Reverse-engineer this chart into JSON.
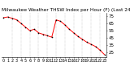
{
  "title": "Milwaukee Weather THSW Index per Hour (F) (Last 24 Hours)",
  "title_fontsize": 4.2,
  "line_color": "#ff0000",
  "marker_color": "#000000",
  "marker_size": 1.2,
  "background_color": "#ffffff",
  "grid_color": "#999999",
  "hours": [
    0,
    1,
    2,
    3,
    4,
    5,
    6,
    7,
    8,
    9,
    10,
    11,
    12,
    13,
    14,
    15,
    16,
    17,
    18,
    19,
    20,
    21,
    22,
    23
  ],
  "values": [
    73,
    74,
    72,
    70,
    65,
    60,
    55,
    57,
    52,
    50,
    48,
    46,
    70,
    68,
    63,
    57,
    52,
    47,
    43,
    39,
    36,
    33,
    28,
    22
  ],
  "ylim": [
    18,
    80
  ],
  "yticks": [
    25,
    35,
    45,
    55,
    65,
    75
  ],
  "ylabel_fontsize": 4.0,
  "xlabel_fontsize": 3.5,
  "line_width": 0.7,
  "vgrid_positions": [
    2,
    4,
    6,
    8,
    10,
    12,
    14,
    16,
    18,
    20,
    22
  ]
}
